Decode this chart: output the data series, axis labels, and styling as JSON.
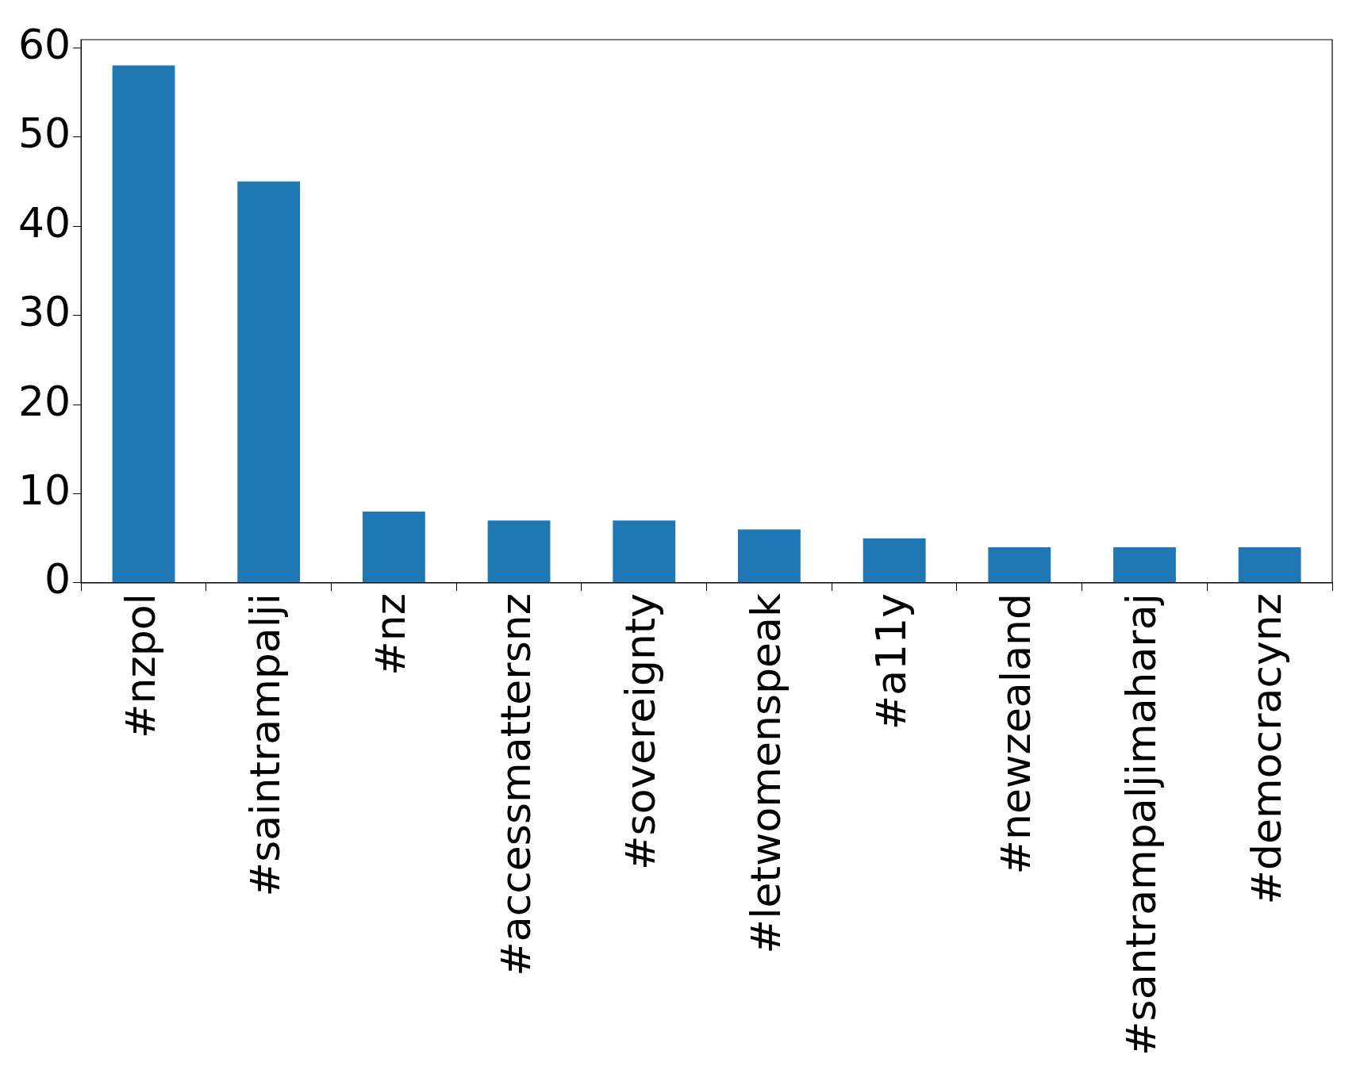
{
  "chart_data": {
    "type": "bar",
    "categories": [
      "#nzpol",
      "#saintrampalji",
      "#nz",
      "#accessmattersnz",
      "#sovereignty",
      "#letwomenspeak",
      "#a11y",
      "#newzealand",
      "#santrampaljimaharaj",
      "#democracynz"
    ],
    "values": [
      58,
      45,
      8,
      7,
      7,
      6,
      5,
      4,
      4,
      4
    ],
    "color": "#1f77b4",
    "ylim": [
      0,
      60.9
    ],
    "yticks": [
      0,
      10,
      20,
      30,
      40,
      50,
      60
    ],
    "grid": false,
    "legend": false
  }
}
